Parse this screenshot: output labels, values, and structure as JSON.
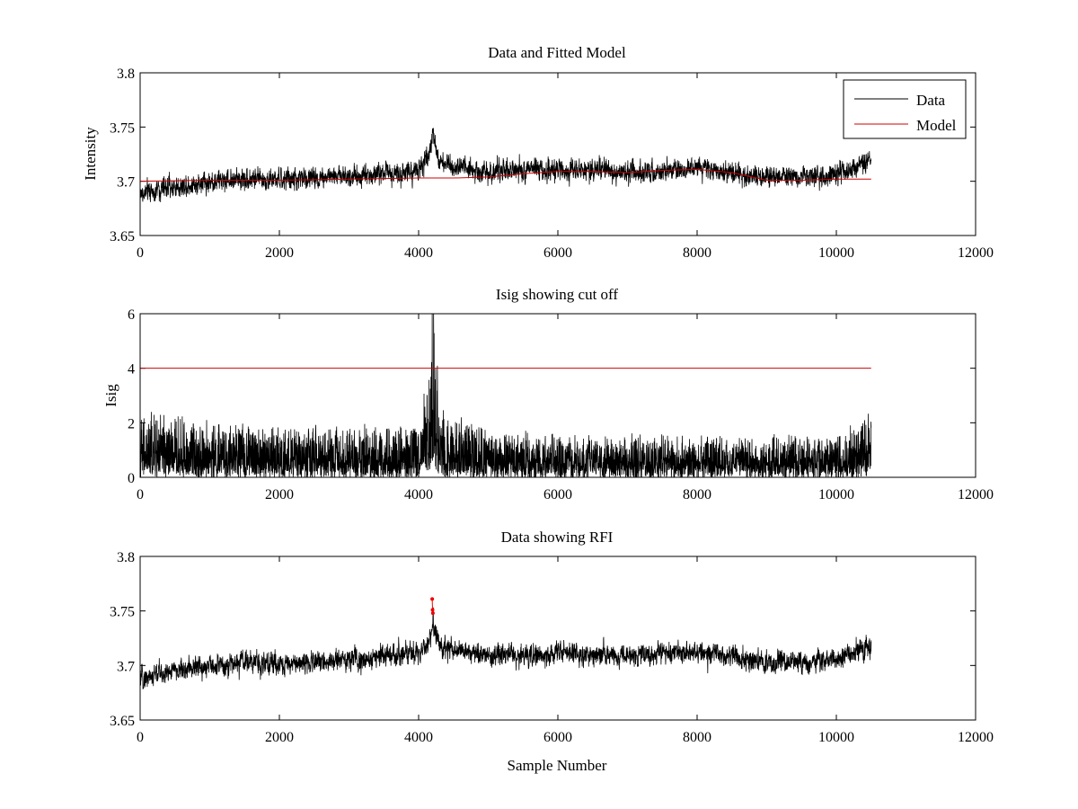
{
  "colors": {
    "data": "#000000",
    "model": "#cc0000",
    "rfi": "#ee0000"
  },
  "legend": {
    "data_label": "Data",
    "model_label": "Model"
  },
  "chart_data": [
    {
      "type": "line",
      "title": "Data and Fitted Model",
      "xlabel": "",
      "ylabel": "Intensity",
      "xlim": [
        0,
        12000
      ],
      "ylim": [
        3.65,
        3.8
      ],
      "xticks": [
        0,
        2000,
        4000,
        6000,
        8000,
        10000,
        12000
      ],
      "yticks": [
        3.65,
        3.7,
        3.75,
        3.8
      ],
      "ytick_labels": [
        "3.65",
        "3.7",
        "3.75",
        "3.8"
      ],
      "grid": false,
      "legend": "top-right",
      "series": [
        {
          "name": "Data",
          "noise": true,
          "x": [
            0,
            300,
            800,
            1500,
            2000,
            2600,
            3200,
            4000,
            4150,
            4200,
            4300,
            5000,
            6000,
            7000,
            8000,
            9000,
            10000,
            10500
          ],
          "y": [
            3.688,
            3.693,
            3.698,
            3.703,
            3.701,
            3.704,
            3.706,
            3.71,
            3.72,
            3.745,
            3.718,
            3.708,
            3.711,
            3.709,
            3.712,
            3.703,
            3.706,
            3.718
          ],
          "amplitude": 0.011
        },
        {
          "name": "Model",
          "x": [
            0,
            1000,
            2000,
            3000,
            4000,
            4500,
            5000,
            5500,
            6000,
            6500,
            7000,
            7500,
            8000,
            8500,
            9000,
            9500,
            10000,
            10500
          ],
          "y": [
            3.7,
            3.701,
            3.701,
            3.702,
            3.703,
            3.703,
            3.704,
            3.707,
            3.709,
            3.709,
            3.708,
            3.71,
            3.711,
            3.708,
            3.701,
            3.701,
            3.702,
            3.702
          ]
        }
      ]
    },
    {
      "type": "line",
      "title": "Isig showing cut off",
      "xlabel": "",
      "ylabel": "Isig",
      "xlim": [
        0,
        12000
      ],
      "ylim": [
        0,
        6
      ],
      "xticks": [
        0,
        2000,
        4000,
        6000,
        8000,
        10000,
        12000
      ],
      "yticks": [
        0,
        2,
        4,
        6
      ],
      "ytick_labels": [
        "0",
        "2",
        "4",
        "6"
      ],
      "grid": false,
      "series": [
        {
          "noise": true,
          "x": [
            0,
            1000,
            2000,
            3000,
            4000,
            4150,
            4200,
            4300,
            5000,
            6000,
            8000,
            10000,
            10500
          ],
          "y": [
            1.3,
            1.1,
            1.0,
            1.0,
            1.1,
            2.5,
            4.5,
            1.5,
            0.9,
            0.8,
            0.8,
            0.8,
            1.3
          ],
          "amplitude": 1.2
        },
        {
          "x": [
            0,
            10500
          ],
          "y": [
            4,
            4
          ]
        }
      ]
    },
    {
      "type": "line",
      "title": "Data showing RFI",
      "xlabel": "Sample Number",
      "ylabel": "",
      "xlim": [
        0,
        12000
      ],
      "ylim": [
        3.65,
        3.8
      ],
      "xticks": [
        0,
        2000,
        4000,
        6000,
        8000,
        10000,
        12000
      ],
      "yticks": [
        3.65,
        3.7,
        3.75,
        3.8
      ],
      "ytick_labels": [
        "3.65",
        "3.7",
        "3.75",
        "3.8"
      ],
      "grid": false,
      "series": [
        {
          "noise": true,
          "x": [
            0,
            300,
            800,
            1500,
            2000,
            2600,
            3200,
            4000,
            4150,
            4200,
            4300,
            5000,
            6000,
            7000,
            8000,
            9000,
            10000,
            10500
          ],
          "y": [
            3.688,
            3.693,
            3.698,
            3.703,
            3.701,
            3.704,
            3.706,
            3.71,
            3.72,
            3.738,
            3.718,
            3.708,
            3.711,
            3.709,
            3.712,
            3.703,
            3.706,
            3.718
          ],
          "amplitude": 0.011
        },
        {
          "markers": true,
          "x": [
            4195,
            4200,
            4205
          ],
          "y": [
            3.761,
            3.751,
            3.748
          ]
        }
      ]
    }
  ]
}
